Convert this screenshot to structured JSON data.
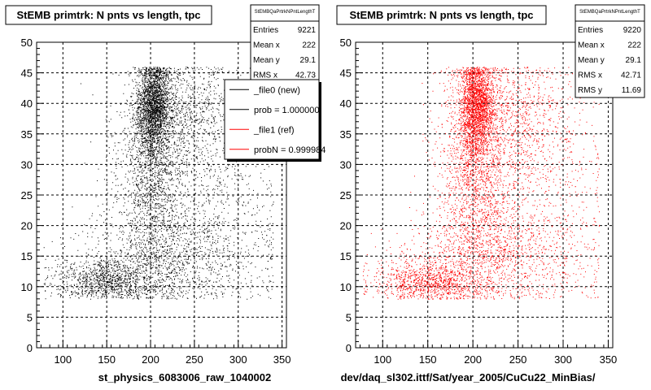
{
  "footer_text": "",
  "chart_data": [
    {
      "type": "scatter",
      "title": "StEMB primtrk: N pnts vs length, tpc",
      "xlabel": "st_physics_6083006_raw_1040002",
      "ylabel": "",
      "xlim": [
        70,
        355
      ],
      "ylim": [
        0,
        50
      ],
      "x_ticks": [
        100,
        150,
        200,
        250,
        300,
        350
      ],
      "y_ticks": [
        0,
        5,
        10,
        15,
        20,
        25,
        30,
        35,
        40,
        45,
        50
      ],
      "grid": true,
      "marker_color": "#000000",
      "stats": {
        "name": "StEMBQaPrtrkNPntLengthT",
        "rows": [
          {
            "label": "Entries",
            "value": "9221"
          },
          {
            "label": "Mean x",
            "value": "222"
          },
          {
            "label": "Mean y",
            "value": "29.1"
          },
          {
            "label": "RMS x",
            "value": "42.73"
          }
        ]
      },
      "legend": [
        {
          "label": "_file0 (new)",
          "color": "#000000"
        },
        {
          "label": "prob = 1.000000",
          "color": "#000000"
        },
        {
          "label": "_file1 (ref)",
          "color": "#ff0000"
        },
        {
          "label": "probN = 0.999984",
          "color": "#ff0000"
        }
      ],
      "density": [
        {
          "cx": 205,
          "cy": 40,
          "sx": 9,
          "sy": 3.5,
          "n": 1500
        },
        {
          "cx": 200,
          "cy": 36,
          "sx": 10,
          "sy": 6,
          "n": 900
        },
        {
          "cx": 240,
          "cy": 38,
          "sx": 35,
          "sy": 5,
          "n": 900
        },
        {
          "cx": 205,
          "cy": 25,
          "sx": 22,
          "sy": 9,
          "n": 1300
        },
        {
          "cx": 150,
          "cy": 11,
          "sx": 30,
          "sy": 1.8,
          "n": 1000
        },
        {
          "cx": 230,
          "cy": 15,
          "sx": 55,
          "sy": 4,
          "n": 1000
        },
        {
          "cx": 260,
          "cy": 26,
          "sx": 45,
          "sy": 9,
          "n": 700
        }
      ]
    },
    {
      "type": "scatter",
      "title": "StEMB primtrk: N pnts vs length, tpc",
      "xlabel": "dev/daq_sl302.ittf/Sat/year_2005/CuCu22_MinBias/",
      "ylabel": "",
      "xlim": [
        70,
        355
      ],
      "ylim": [
        0,
        50
      ],
      "x_ticks": [
        100,
        150,
        200,
        250,
        300,
        350
      ],
      "y_ticks": [
        0,
        5,
        10,
        15,
        20,
        25,
        30,
        35,
        40,
        45,
        50
      ],
      "grid": true,
      "marker_color": "#ff0000",
      "stats": {
        "name": "StEMBQaPrtrkNPntLengthT",
        "rows": [
          {
            "label": "Entries",
            "value": "9220"
          },
          {
            "label": "Mean x",
            "value": "222"
          },
          {
            "label": "Mean y",
            "value": "29.1"
          },
          {
            "label": "RMS x",
            "value": "42.71"
          },
          {
            "label": "RMS y",
            "value": "11.69"
          }
        ]
      },
      "legend": [],
      "density": [
        {
          "cx": 205,
          "cy": 40,
          "sx": 9,
          "sy": 3.5,
          "n": 1500
        },
        {
          "cx": 200,
          "cy": 36,
          "sx": 10,
          "sy": 6,
          "n": 900
        },
        {
          "cx": 240,
          "cy": 38,
          "sx": 35,
          "sy": 5,
          "n": 900
        },
        {
          "cx": 205,
          "cy": 25,
          "sx": 22,
          "sy": 9,
          "n": 1300
        },
        {
          "cx": 150,
          "cy": 11,
          "sx": 30,
          "sy": 1.8,
          "n": 1000
        },
        {
          "cx": 230,
          "cy": 15,
          "sx": 55,
          "sy": 4,
          "n": 1000
        },
        {
          "cx": 260,
          "cy": 26,
          "sx": 45,
          "sy": 9,
          "n": 700
        }
      ]
    }
  ]
}
